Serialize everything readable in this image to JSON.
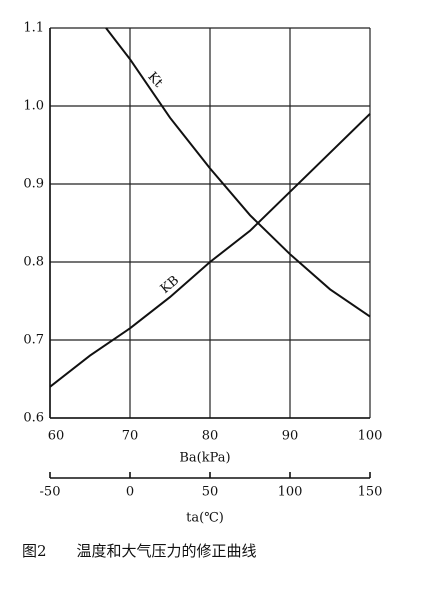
{
  "chart_data": {
    "type": "line",
    "xlabel": "Ba(kPa)",
    "x2label": "ta(℃)",
    "caption": "图2　　温度和大气压力的修正曲线",
    "xlim": [
      60,
      100
    ],
    "xticks": [
      60,
      70,
      80,
      90,
      100
    ],
    "x2lim": [
      -50,
      150
    ],
    "x2ticks": [
      -50,
      0,
      50,
      100,
      150
    ],
    "ylim": [
      0.6,
      1.1
    ],
    "yticks": [
      0.6,
      0.7,
      0.8,
      0.9,
      {
        "value": 1,
        "label": "1.0"
      },
      1.1
    ],
    "grid": true,
    "series": [
      {
        "name": "Kt",
        "color": "#111111",
        "x": [
          67,
          70,
          75,
          80,
          85,
          90,
          95,
          100
        ],
        "values": [
          1.1,
          1.06,
          0.985,
          0.92,
          0.86,
          0.81,
          0.765,
          0.73
        ]
      },
      {
        "name": "KB",
        "color": "#111111",
        "x": [
          60,
          65,
          70,
          75,
          80,
          85,
          90,
          95,
          100
        ],
        "values": [
          0.64,
          0.68,
          0.715,
          0.755,
          0.8,
          0.84,
          0.89,
          0.94,
          0.99
        ]
      }
    ]
  }
}
